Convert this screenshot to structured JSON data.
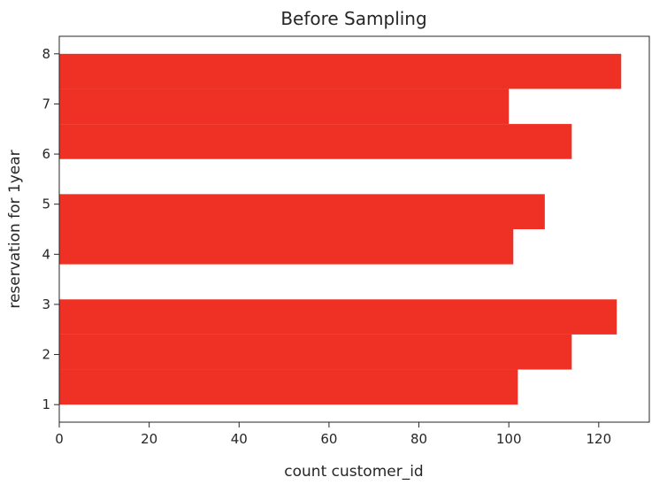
{
  "chart_data": {
    "type": "bar",
    "orientation": "horizontal",
    "title": "Before Sampling",
    "xlabel": "count customer_id",
    "ylabel": "reservation for 1year",
    "xlim": [
      0,
      131.25
    ],
    "ylim": [
      0.65,
      8.35
    ],
    "x_ticks": [
      0,
      20,
      40,
      60,
      80,
      100,
      120
    ],
    "y_ticks": [
      1,
      2,
      3,
      4,
      5,
      6,
      7,
      8
    ],
    "grid": false,
    "legend": "none",
    "bar_color": "#ee3124",
    "bins": [
      {
        "y0": 1.0,
        "y1": 1.7,
        "count": 102
      },
      {
        "y0": 1.7,
        "y1": 2.4,
        "count": 114
      },
      {
        "y0": 2.4,
        "y1": 3.1,
        "count": 124
      },
      {
        "y0": 3.1,
        "y1": 3.8,
        "count": 0
      },
      {
        "y0": 3.8,
        "y1": 4.5,
        "count": 101
      },
      {
        "y0": 4.5,
        "y1": 5.2,
        "count": 108
      },
      {
        "y0": 5.2,
        "y1": 5.9,
        "count": 0
      },
      {
        "y0": 5.9,
        "y1": 6.6,
        "count": 114
      },
      {
        "y0": 6.6,
        "y1": 7.3,
        "count": 100
      },
      {
        "y0": 7.3,
        "y1": 8.0,
        "count": 125
      }
    ]
  }
}
